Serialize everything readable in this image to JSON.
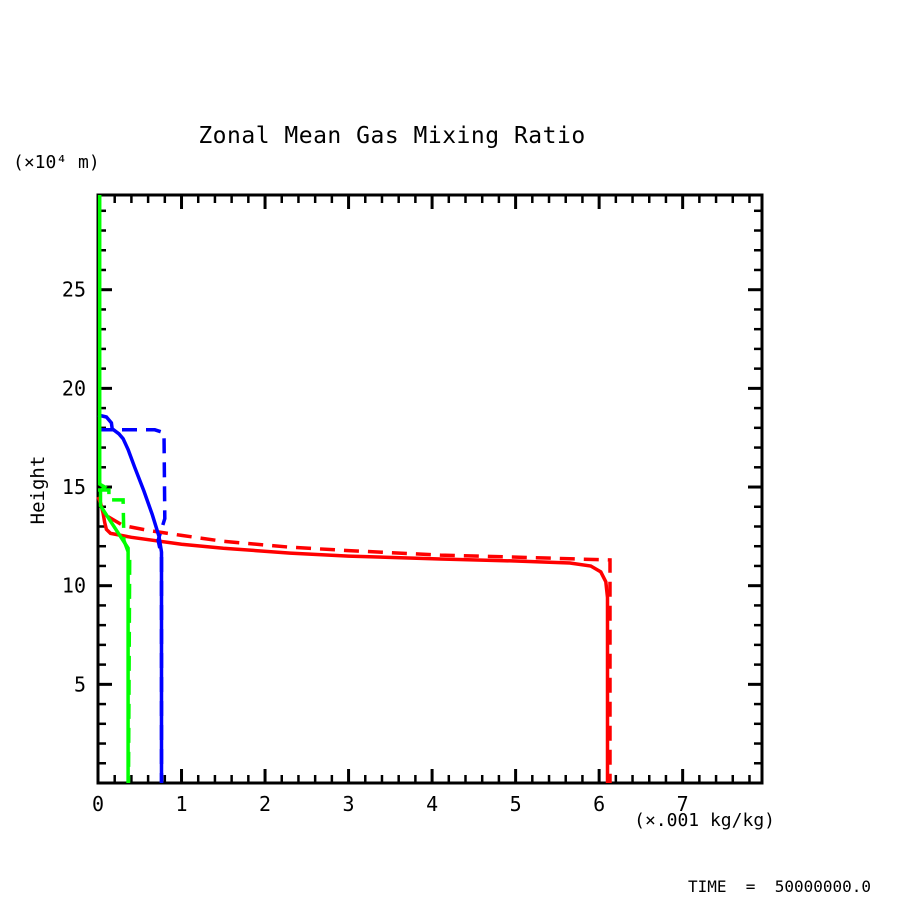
{
  "figure": {
    "title": "Zonal Mean Gas Mixing Ratio",
    "y_unit_label": "(×10⁴ m)",
    "y_axis_label": "Height",
    "x_unit_label": "(×.001 kg/kg)",
    "time_label": "TIME  =  50000000.0"
  },
  "colors": {
    "background": "#ffffff",
    "frame": "#000000",
    "red": "#ff0000",
    "green": "#00ff00",
    "blue": "#0000ff"
  },
  "chart_data": {
    "type": "line",
    "title": "Zonal Mean Gas Mixing Ratio",
    "xlabel": "(×.001 kg/kg)",
    "ylabel": "Height (×10⁴ m)",
    "xlim": [
      0,
      7.95
    ],
    "ylim": [
      0,
      29.8
    ],
    "x_major_ticks": [
      0,
      1,
      2,
      3,
      4,
      5,
      6,
      7
    ],
    "x_minor_step": 0.2,
    "y_major_ticks": [
      5,
      10,
      15,
      20,
      25
    ],
    "y_minor_step": 1,
    "grid": false,
    "legend": "none",
    "annotation": "TIME = 50000000.0",
    "series": [
      {
        "name": "red-dashed",
        "color": "#ff0000",
        "style": "dashed",
        "points": [
          [
            0.12,
            13.5
          ],
          [
            0.3,
            13.05
          ],
          [
            0.6,
            12.8
          ],
          [
            1.0,
            12.55
          ],
          [
            1.5,
            12.25
          ],
          [
            2.3,
            11.95
          ],
          [
            3.0,
            11.78
          ],
          [
            4.1,
            11.55
          ],
          [
            5.0,
            11.45
          ],
          [
            6.13,
            11.3
          ],
          [
            6.13,
            0
          ]
        ]
      },
      {
        "name": "red-solid",
        "color": "#ff0000",
        "style": "solid",
        "points": [
          [
            0.0,
            14.5
          ],
          [
            0.03,
            14.2
          ],
          [
            0.06,
            13.7
          ],
          [
            0.08,
            13.2
          ],
          [
            0.1,
            12.85
          ],
          [
            0.15,
            12.65
          ],
          [
            0.4,
            12.45
          ],
          [
            1.0,
            12.1
          ],
          [
            1.5,
            11.9
          ],
          [
            2.3,
            11.65
          ],
          [
            3.0,
            11.5
          ],
          [
            4.1,
            11.35
          ],
          [
            5.0,
            11.25
          ],
          [
            5.65,
            11.15
          ],
          [
            5.9,
            11.0
          ],
          [
            6.02,
            10.7
          ],
          [
            6.08,
            10.2
          ],
          [
            6.1,
            9.4
          ],
          [
            6.1,
            0
          ]
        ]
      },
      {
        "name": "blue-dashed",
        "color": "#0000ff",
        "style": "dashed",
        "points": [
          [
            0.0,
            17.9
          ],
          [
            0.68,
            17.9
          ],
          [
            0.79,
            17.75
          ],
          [
            0.8,
            13.4
          ],
          [
            0.72,
            12.3
          ],
          [
            0.76,
            11.5
          ],
          [
            0.76,
            0
          ]
        ]
      },
      {
        "name": "blue-solid",
        "color": "#0000ff",
        "style": "solid",
        "points": [
          [
            0.0,
            18.65
          ],
          [
            0.1,
            18.55
          ],
          [
            0.16,
            18.25
          ],
          [
            0.17,
            17.95
          ],
          [
            0.25,
            17.7
          ],
          [
            0.3,
            17.45
          ],
          [
            0.36,
            16.9
          ],
          [
            0.44,
            16.0
          ],
          [
            0.55,
            14.8
          ],
          [
            0.65,
            13.6
          ],
          [
            0.73,
            12.5
          ],
          [
            0.76,
            11.7
          ],
          [
            0.76,
            0
          ]
        ]
      },
      {
        "name": "green-dashed",
        "color": "#00ff00",
        "style": "dashed",
        "points": [
          [
            0.0,
            14.85
          ],
          [
            0.13,
            14.85
          ],
          [
            0.13,
            14.35
          ],
          [
            0.3,
            14.35
          ],
          [
            0.31,
            12.3
          ],
          [
            0.38,
            11.5
          ],
          [
            0.365,
            0
          ]
        ]
      },
      {
        "name": "green-solid",
        "color": "#00ff00",
        "style": "solid",
        "points": [
          [
            0.02,
            29.8
          ],
          [
            0.02,
            15.15
          ],
          [
            0.08,
            15.0
          ],
          [
            0.03,
            14.8
          ],
          [
            0.03,
            14.05
          ],
          [
            0.36,
            11.9
          ],
          [
            0.36,
            0
          ]
        ]
      }
    ]
  }
}
